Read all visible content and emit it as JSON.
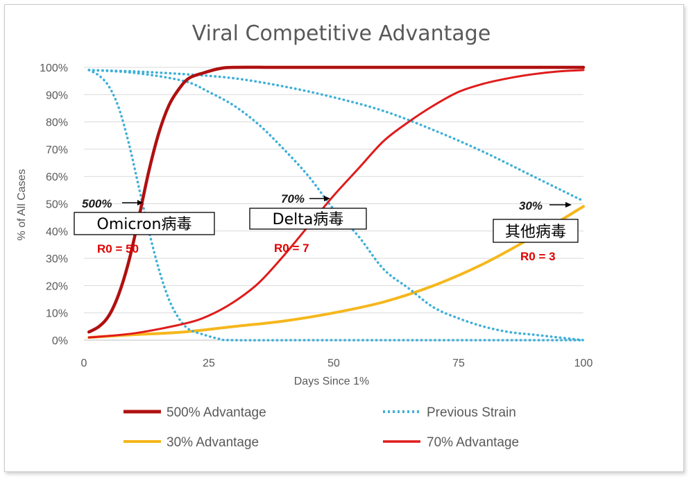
{
  "chart_data": {
    "type": "line",
    "title": "Viral Competitive Advantage",
    "xlabel": "Days Since 1%",
    "ylabel": "% of All Cases",
    "xlim": [
      0,
      100
    ],
    "ylim": [
      0,
      100
    ],
    "x_ticks": [
      "0",
      "25",
      "50",
      "75",
      "100"
    ],
    "y_ticks": [
      "0%",
      "10%",
      "20%",
      "30%",
      "40%",
      "50%",
      "60%",
      "70%",
      "80%",
      "90%",
      "100%"
    ],
    "grid": true,
    "legend_position": "bottom",
    "series": [
      {
        "name": "500% Advantage",
        "color": "#b01010",
        "style": "solid-thick",
        "points": [
          [
            1,
            3
          ],
          [
            3,
            5
          ],
          [
            5,
            9
          ],
          [
            7,
            17
          ],
          [
            9,
            29
          ],
          [
            11,
            45
          ],
          [
            13,
            62
          ],
          [
            15,
            76
          ],
          [
            17,
            86
          ],
          [
            19,
            92
          ],
          [
            21,
            96
          ],
          [
            24,
            98
          ],
          [
            27,
            99.5
          ],
          [
            30,
            100
          ],
          [
            40,
            100
          ],
          [
            60,
            100
          ],
          [
            80,
            100
          ],
          [
            100,
            100
          ]
        ]
      },
      {
        "name": "Previous Strain",
        "color": "#3fb0d8",
        "style": "dotted",
        "points": [
          [
            1,
            99
          ],
          [
            3,
            97
          ],
          [
            5,
            93
          ],
          [
            7,
            85
          ],
          [
            9,
            72
          ],
          [
            11,
            56
          ],
          [
            13,
            40
          ],
          [
            15,
            26
          ],
          [
            17,
            15
          ],
          [
            19,
            8
          ],
          [
            21,
            4
          ],
          [
            24,
            2
          ],
          [
            27,
            0.5
          ],
          [
            30,
            0
          ],
          [
            50,
            0
          ],
          [
            100,
            0
          ]
        ]
      },
      {
        "name": "Previous Strain",
        "color": "#3fb0d8",
        "style": "dotted",
        "points": [
          [
            1,
            99
          ],
          [
            10,
            98
          ],
          [
            20,
            95
          ],
          [
            25,
            91
          ],
          [
            30,
            86
          ],
          [
            35,
            79
          ],
          [
            40,
            70
          ],
          [
            45,
            60
          ],
          [
            50,
            48
          ],
          [
            55,
            38
          ],
          [
            60,
            26
          ],
          [
            65,
            19
          ],
          [
            70,
            12
          ],
          [
            75,
            8
          ],
          [
            80,
            5
          ],
          [
            85,
            3
          ],
          [
            90,
            2
          ],
          [
            95,
            1
          ],
          [
            100,
            0
          ]
        ]
      },
      {
        "name": "Previous Strain",
        "color": "#3fb0d8",
        "style": "dotted",
        "points": [
          [
            1,
            99
          ],
          [
            10,
            98.5
          ],
          [
            20,
            97.5
          ],
          [
            30,
            96
          ],
          [
            40,
            93
          ],
          [
            50,
            89
          ],
          [
            60,
            84
          ],
          [
            70,
            77
          ],
          [
            80,
            69
          ],
          [
            90,
            60
          ],
          [
            100,
            51
          ]
        ]
      },
      {
        "name": "70% Advantage",
        "color": "#e01b1b",
        "style": "solid",
        "points": [
          [
            1,
            1
          ],
          [
            10,
            2.5
          ],
          [
            20,
            6
          ],
          [
            25,
            9
          ],
          [
            30,
            14
          ],
          [
            35,
            21
          ],
          [
            40,
            31
          ],
          [
            45,
            42
          ],
          [
            50,
            53
          ],
          [
            55,
            63
          ],
          [
            60,
            73
          ],
          [
            65,
            80
          ],
          [
            70,
            86
          ],
          [
            75,
            91
          ],
          [
            80,
            94
          ],
          [
            85,
            96
          ],
          [
            90,
            97.5
          ],
          [
            95,
            98.5
          ],
          [
            100,
            99
          ]
        ]
      },
      {
        "name": "30% Advantage",
        "color": "#f5b71c",
        "style": "solid",
        "points": [
          [
            1,
            1
          ],
          [
            10,
            2
          ],
          [
            20,
            3
          ],
          [
            30,
            5
          ],
          [
            40,
            7
          ],
          [
            50,
            10
          ],
          [
            60,
            14
          ],
          [
            70,
            20
          ],
          [
            80,
            28
          ],
          [
            90,
            38
          ],
          [
            100,
            49
          ]
        ]
      }
    ],
    "annotations": [
      {
        "pct": "500%",
        "label": "Omicron病毒",
        "r0": "R0 = 50"
      },
      {
        "pct": "70%",
        "label": "Delta病毒",
        "r0": "R0 = 7"
      },
      {
        "pct": "30%",
        "label": "其他病毒",
        "r0": "R0 = 3"
      }
    ]
  },
  "legend": [
    {
      "name": "500% Advantage",
      "color": "#b01010",
      "style": "solid-thick"
    },
    {
      "name": "Previous Strain",
      "color": "#3fb0d8",
      "style": "dotted"
    },
    {
      "name": "30% Advantage",
      "color": "#f5b71c",
      "style": "solid"
    },
    {
      "name": "70% Advantage",
      "color": "#e01b1b",
      "style": "solid"
    }
  ]
}
